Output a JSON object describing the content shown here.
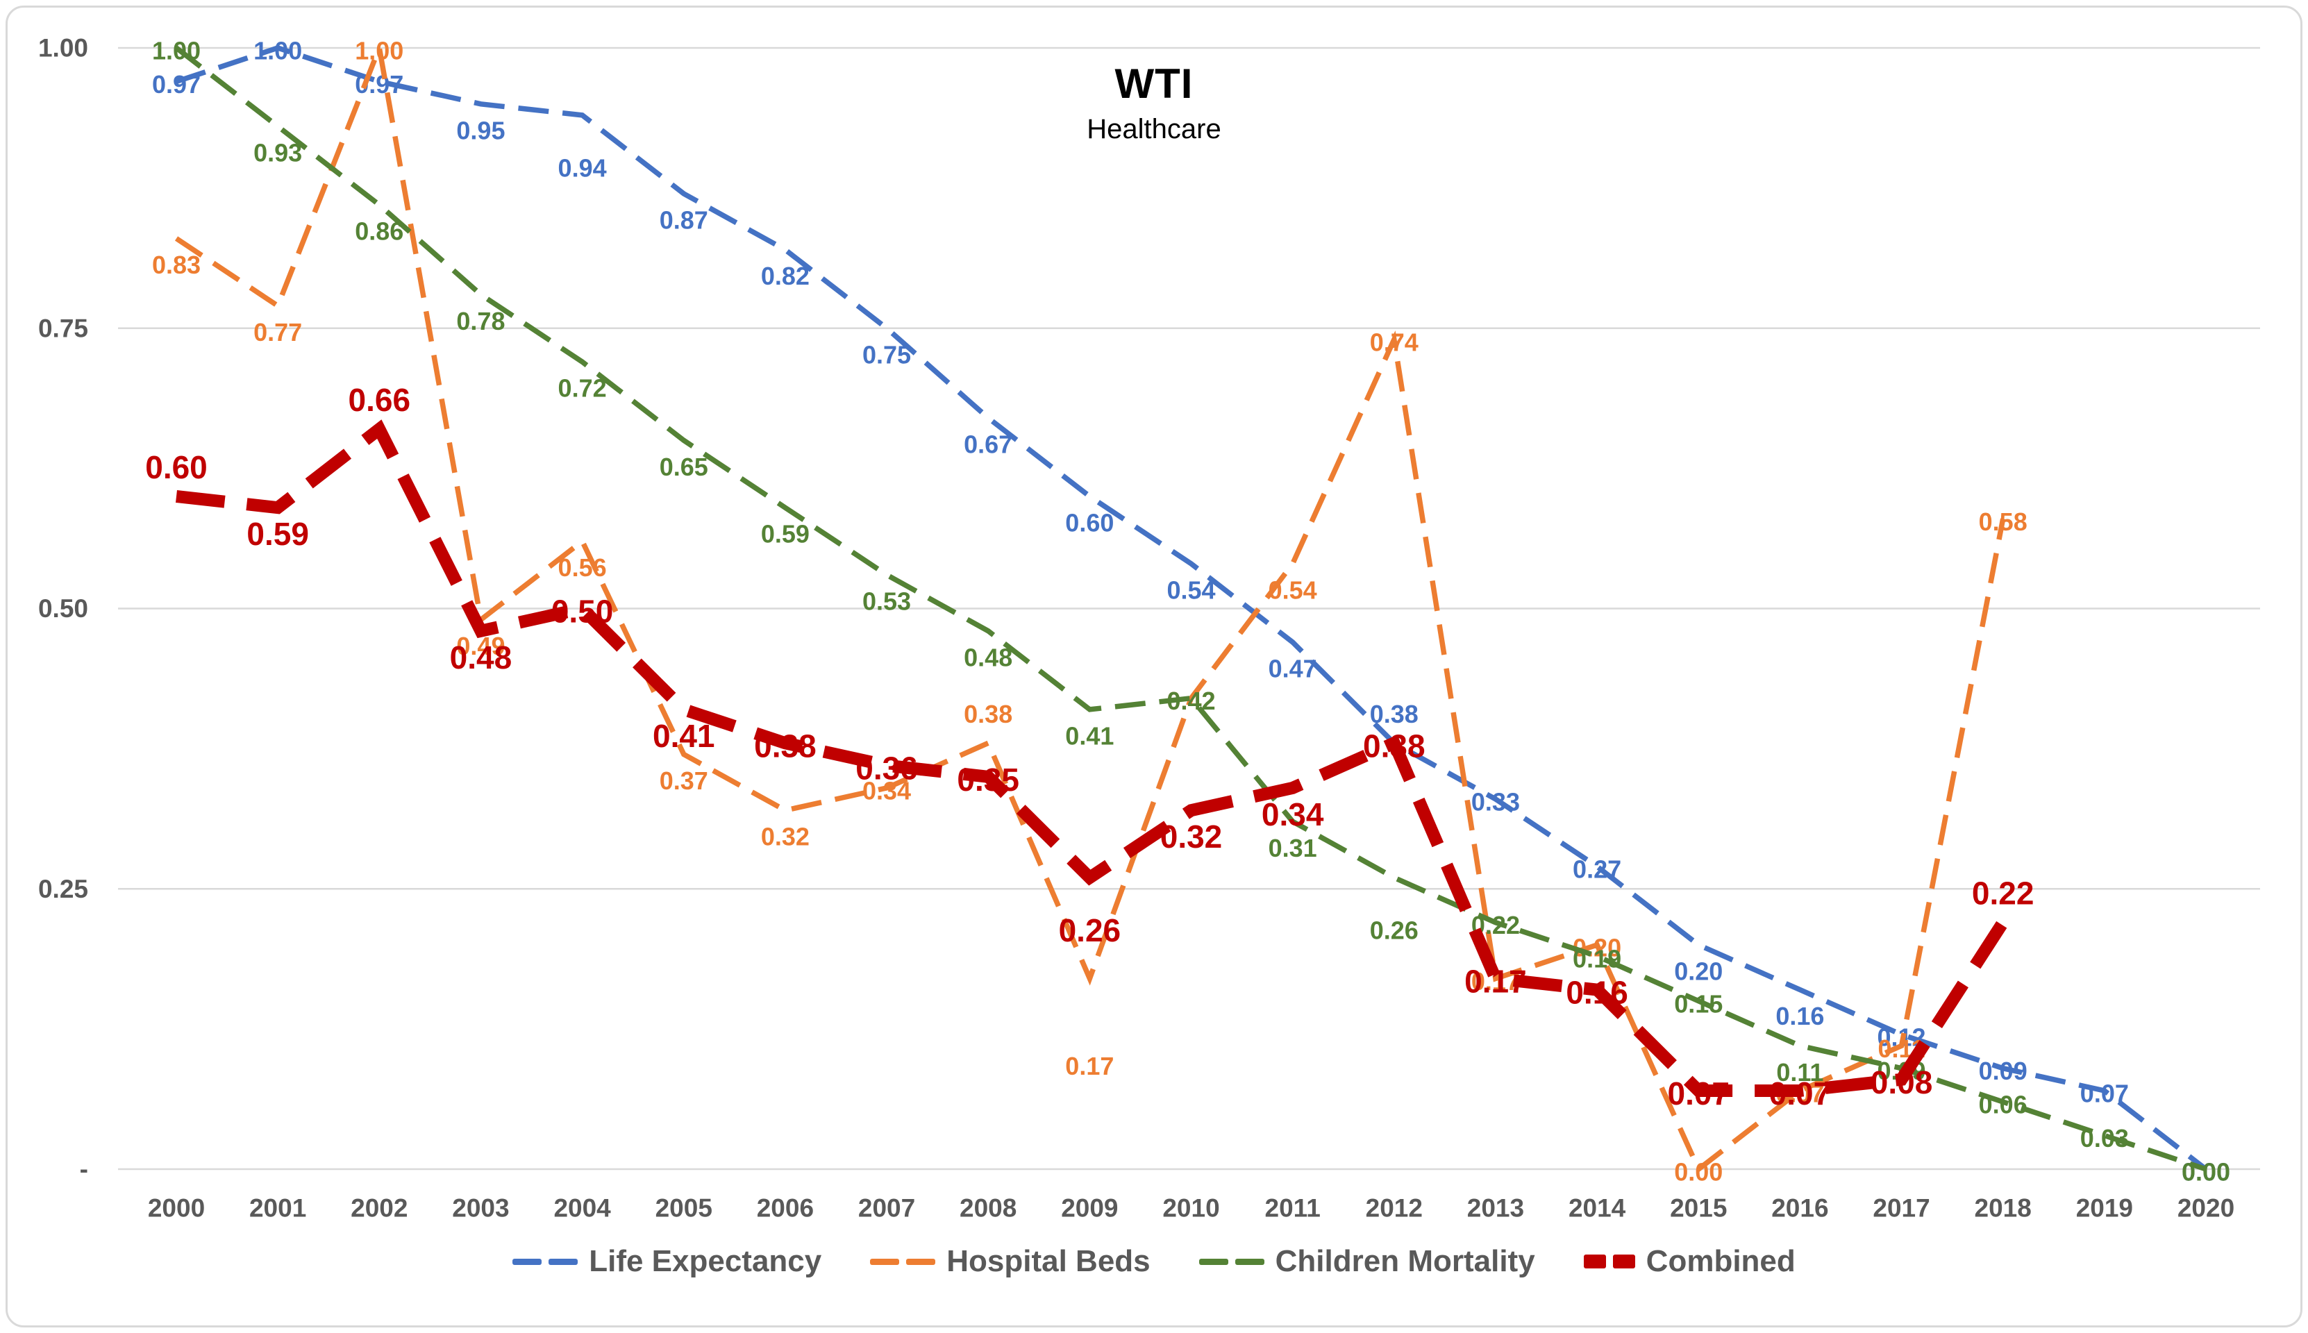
{
  "window": {
    "background": "#ffffff",
    "border_color": "#D9D9D9"
  },
  "chart_data": {
    "type": "line",
    "title": "WTI",
    "subtitle": "Healthcare",
    "x": [
      2000,
      2001,
      2002,
      2003,
      2004,
      2005,
      2006,
      2007,
      2008,
      2009,
      2010,
      2011,
      2012,
      2013,
      2014,
      2015,
      2016,
      2017,
      2018,
      2019,
      2020
    ],
    "x_tick_labels": [
      "2000",
      "2001",
      "2002",
      "2003",
      "2004",
      "2005",
      "2006",
      "2007",
      "2008",
      "2009",
      "2010",
      "2011",
      "2012",
      "2013",
      "2014",
      "2015",
      "2016",
      "2017",
      "2018",
      "2019",
      "2020"
    ],
    "yticks": [
      {
        "label": "1.00",
        "value": 1.0
      },
      {
        "label": "0.75",
        "value": 0.75
      },
      {
        "label": "0.50",
        "value": 0.5
      },
      {
        "label": "0.25",
        "value": 0.25
      },
      {
        "label": "-",
        "value": 0.0
      }
    ],
    "ylim": [
      0,
      1.0
    ],
    "grid": true,
    "legend_position": "bottom",
    "axis_text_color": "#595959",
    "gridline_color": "#D9D9D9",
    "series": [
      {
        "name": "Life Expectancy",
        "color": "#4472C4",
        "line_width": 7.5,
        "dash": "44 20",
        "label_size": 36,
        "values": [
          0.97,
          1.0,
          0.97,
          0.95,
          0.94,
          0.87,
          0.82,
          0.75,
          0.67,
          0.6,
          0.54,
          0.47,
          0.38,
          0.33,
          0.27,
          0.2,
          0.16,
          0.12,
          0.09,
          0.07,
          0.0
        ],
        "label_pos": [
          "center",
          "center",
          "center",
          "below",
          "below-far",
          "below",
          "below",
          "below",
          "below",
          "below",
          "below",
          "below",
          "above",
          "center",
          "center",
          "below",
          "below",
          "center",
          "center",
          "center",
          "center"
        ]
      },
      {
        "name": "Hospital Beds",
        "color": "#ED7D31",
        "line_width": 7.5,
        "dash": "44 20",
        "label_size": 36,
        "values": [
          0.83,
          0.77,
          1.0,
          0.49,
          0.56,
          0.37,
          0.32,
          0.34,
          0.38,
          0.17,
          0.42,
          0.54,
          0.74,
          0.17,
          0.2,
          0.0,
          0.07,
          0.11,
          0.58,
          null,
          null
        ],
        "label_pos": [
          "below",
          "below",
          "center",
          "below",
          "below",
          "below",
          "below",
          "center",
          "above",
          "below2",
          "center",
          "below",
          "center",
          "center",
          "center",
          "center",
          "center",
          "center",
          "center",
          "center",
          "center"
        ]
      },
      {
        "name": "Children Mortality",
        "color": "#548235",
        "line_width": 7.5,
        "dash": "44 20",
        "label_size": 36,
        "values": [
          1.0,
          0.93,
          0.86,
          0.78,
          0.72,
          0.65,
          0.59,
          0.53,
          0.48,
          0.41,
          0.42,
          0.31,
          0.26,
          0.22,
          0.19,
          0.15,
          0.11,
          0.09,
          0.06,
          0.03,
          0.0
        ],
        "label_pos": [
          "center",
          "below",
          "below",
          "below",
          "below",
          "below",
          "below",
          "below",
          "below",
          "below",
          "center",
          "below",
          "below-far",
          "center",
          "center",
          "center",
          "below",
          "center",
          "center",
          "center",
          "center"
        ]
      },
      {
        "name": "Combined",
        "color": "#C00000",
        "line_width": 18,
        "dash": "70 32",
        "label_size": 46,
        "values": [
          0.6,
          0.59,
          0.66,
          0.48,
          0.5,
          0.41,
          0.38,
          0.36,
          0.35,
          0.26,
          0.32,
          0.34,
          0.38,
          0.17,
          0.16,
          0.07,
          0.07,
          0.08,
          0.22,
          null,
          null
        ],
        "label_pos": [
          "above",
          "below",
          "above",
          "below",
          "center",
          "below",
          "center",
          "center",
          "center",
          "below-far",
          "below",
          "below",
          "center",
          "center",
          "center",
          "center",
          "center",
          "center",
          "above",
          "center",
          "center"
        ]
      }
    ]
  }
}
